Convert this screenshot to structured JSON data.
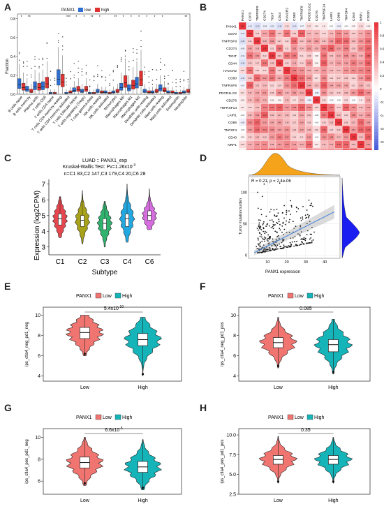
{
  "panels": {
    "A": {
      "label": "A",
      "legend_title": "PANX1",
      "legend_items": [
        {
          "name": "low",
          "color": "#2f6fd1"
        },
        {
          "name": "high",
          "color": "#e03131"
        }
      ],
      "ylabel": "Fraction",
      "yticks": [
        "0.0",
        "0.2",
        "0.4",
        "0.6",
        "0.8"
      ],
      "significance": [
        "*",
        "**",
        "",
        "",
        "",
        "",
        "***",
        "*",
        "*",
        "**",
        "*",
        "",
        "**",
        "*",
        "*",
        "*",
        "*",
        "*",
        "*",
        "",
        "",
        "**"
      ],
      "categories": [
        "B cells naive",
        "B cells memory",
        "Plasma cells",
        "T cells CD8",
        "T cells CD4 naive",
        "T cells CD4 memory resting",
        "T cells CD4 memory activated",
        "T cells follicular helper",
        "T cells regulatory (Tregs)",
        "T cells gamma delta",
        "NK cells resting",
        "NK cells activated",
        "Monocytes",
        "Macrophages M0",
        "Macrophages M1",
        "Macrophages M2",
        "Dendritic cells resting",
        "Dendritic cells activated",
        "Mast cells resting",
        "Mast cells activated",
        "Eosinophils",
        "Neutrophils"
      ],
      "low_medians": [
        0.1,
        0.05,
        0.08,
        0.08,
        0.01,
        0.16,
        0.01,
        0.04,
        0.03,
        0.01,
        0.03,
        0.02,
        0.02,
        0.07,
        0.06,
        0.11,
        0.03,
        0.02,
        0.06,
        0.02,
        0.01,
        0.02
      ],
      "high_medians": [
        0.07,
        0.03,
        0.07,
        0.11,
        0.01,
        0.13,
        0.02,
        0.05,
        0.05,
        0.01,
        0.02,
        0.01,
        0.03,
        0.12,
        0.09,
        0.15,
        0.02,
        0.03,
        0.04,
        0.02,
        0.01,
        0.03
      ]
    },
    "B": {
      "label": "B",
      "genes": [
        "PANX1",
        "CD70",
        "TNFRSF9",
        "CD274",
        "TIGIT",
        "CD44",
        "HAVCR2",
        "CD80",
        "TNFRSF8",
        "PDCD1LG2",
        "CD276",
        "TNFRSF14",
        "LAIR1",
        "CD86",
        "TNFSF4",
        "CD40",
        "NRP1",
        "CD200"
      ],
      "scale_ticks": [
        "1",
        "0.8",
        "0.6",
        "0.4",
        "0.2",
        "0",
        "-0.2",
        "-0.4",
        "-0.6",
        "-0.8",
        "-1"
      ],
      "colors": {
        "pos": "#e8343a",
        "neg": "#3b4fd6",
        "mid": "#ffffff"
      }
    },
    "C": {
      "label": "C",
      "title1": "LUAD :: PANX1_exp",
      "title2": "Kruskal-Wallis Test: Pv=1.26x10",
      "title2_sup": "-3",
      "title3": "n=C1 83,C2 147,C3 179,C4 20,C6 28",
      "ylabel": "Expression (log2CPM)",
      "xlabel": "Subtype",
      "yticks": [
        "3",
        "4",
        "5",
        "6",
        "7"
      ],
      "ylim": [
        2.5,
        7.3
      ],
      "groups": [
        {
          "name": "C1",
          "median": 4.8,
          "q1": 4.4,
          "q3": 5.1,
          "min": 3.6,
          "max": 6.2,
          "color": "#e6474e"
        },
        {
          "name": "C2",
          "median": 4.7,
          "q1": 4.3,
          "q3": 5.0,
          "min": 3.2,
          "max": 6.6,
          "color": "#a8a11a"
        },
        {
          "name": "C3",
          "median": 4.5,
          "q1": 4.1,
          "q3": 4.8,
          "min": 3.0,
          "max": 5.9,
          "color": "#2fb36e"
        },
        {
          "name": "C4",
          "median": 4.8,
          "q1": 4.3,
          "q3": 5.1,
          "min": 3.3,
          "max": 7.0,
          "color": "#22a8e0"
        },
        {
          "name": "C6",
          "median": 5.0,
          "q1": 4.7,
          "q3": 5.3,
          "min": 4.1,
          "max": 6.7,
          "color": "#d66ee0"
        }
      ]
    },
    "D": {
      "label": "D",
      "annotation": "R = 0.21, p = 2.4e-06",
      "xlabel": "PANX1 expression",
      "ylabel": "Tumor mutation burden",
      "xticks": [
        "10",
        "20",
        "30",
        "40"
      ],
      "yticks": [
        "0",
        "50",
        "100"
      ]
    },
    "E": {
      "label": "E",
      "legend_title": "PANX1",
      "legend_low": "Low",
      "legend_high": "High",
      "pvalue": "5.4x10",
      "pvalue_sup": "-10",
      "ylabel": "ips_ctla4_neg_pd1_neg",
      "yticks": [
        "4",
        "6",
        "8",
        "10"
      ],
      "ylim": [
        3.5,
        10.8
      ],
      "groups": [
        {
          "name": "Low",
          "median": 8.3,
          "q1": 7.7,
          "q3": 8.8,
          "min": 6.0,
          "max": 10.0
        },
        {
          "name": "High",
          "median": 7.6,
          "q1": 7.0,
          "q3": 8.2,
          "min": 4.0,
          "max": 9.8
        }
      ]
    },
    "F": {
      "label": "F",
      "legend_title": "PANX1",
      "legend_low": "Low",
      "legend_high": "High",
      "pvalue": "0.085",
      "pvalue_sup": "",
      "ylabel": "ips_ctla4_neg_pd1_pos",
      "yticks": [
        "4",
        "6",
        "8",
        "10"
      ],
      "ylim": [
        3.5,
        10.8
      ],
      "groups": [
        {
          "name": "Low",
          "median": 7.3,
          "q1": 6.8,
          "q3": 7.8,
          "min": 4.8,
          "max": 9.8
        },
        {
          "name": "High",
          "median": 7.1,
          "q1": 6.4,
          "q3": 7.6,
          "min": 4.2,
          "max": 9.6
        }
      ]
    },
    "G": {
      "label": "G",
      "legend_title": "PANX1",
      "legend_low": "Low",
      "legend_high": "High",
      "pvalue": "6.6x10",
      "pvalue_sup": "-5",
      "ylabel": "ips_ctla4_pos_pd1_neg",
      "yticks": [
        "6",
        "8",
        "10"
      ],
      "ylim": [
        4.8,
        10.8
      ],
      "groups": [
        {
          "name": "Low",
          "median": 7.7,
          "q1": 7.2,
          "q3": 8.2,
          "min": 5.6,
          "max": 10.0
        },
        {
          "name": "High",
          "median": 7.3,
          "q1": 6.8,
          "q3": 7.8,
          "min": 5.2,
          "max": 9.8
        }
      ]
    },
    "H": {
      "label": "H",
      "legend_title": "PANX1",
      "legend_low": "Low",
      "legend_high": "High",
      "pvalue": "0.35",
      "pvalue_sup": "",
      "ylabel": "ips_ctla4_pos_pd1_pos",
      "yticks": [
        "2.5",
        "5.0",
        "7.5",
        "10.0"
      ],
      "ylim": [
        2.5,
        10.8
      ],
      "groups": [
        {
          "name": "Low",
          "median": 6.9,
          "q1": 6.3,
          "q3": 7.4,
          "min": 3.9,
          "max": 9.8
        },
        {
          "name": "High",
          "median": 6.9,
          "q1": 6.3,
          "q3": 7.4,
          "min": 3.9,
          "max": 9.7
        }
      ]
    }
  },
  "colors": {
    "low": "#f07470",
    "high": "#14b4b8",
    "d_density_top": "#f5a31a",
    "d_density_right": "#1a1ef0",
    "d_line": "#3d7fd9"
  },
  "chart_data": [
    {
      "type": "box",
      "panel": "A",
      "ylabel": "Fraction",
      "ylim": [
        0,
        0.8
      ],
      "categories": [
        "B cells naive",
        "B cells memory",
        "Plasma cells",
        "T cells CD8",
        "T cells CD4 naive",
        "T cells CD4 memory resting",
        "T cells CD4 memory activated",
        "T cells follicular helper",
        "T cells regulatory (Tregs)",
        "T cells gamma delta",
        "NK cells resting",
        "NK cells activated",
        "Monocytes",
        "Macrophages M0",
        "Macrophages M1",
        "Macrophages M2",
        "Dendritic cells resting",
        "Dendritic cells activated",
        "Mast cells resting",
        "Mast cells activated",
        "Eosinophils",
        "Neutrophils"
      ],
      "series": [
        {
          "name": "low",
          "values": [
            0.1,
            0.05,
            0.08,
            0.08,
            0.01,
            0.16,
            0.01,
            0.04,
            0.03,
            0.01,
            0.03,
            0.02,
            0.02,
            0.07,
            0.06,
            0.11,
            0.03,
            0.02,
            0.06,
            0.02,
            0.01,
            0.02
          ]
        },
        {
          "name": "high",
          "values": [
            0.07,
            0.03,
            0.07,
            0.11,
            0.01,
            0.13,
            0.02,
            0.05,
            0.05,
            0.01,
            0.02,
            0.01,
            0.03,
            0.12,
            0.09,
            0.15,
            0.02,
            0.03,
            0.04,
            0.02,
            0.01,
            0.03
          ]
        }
      ]
    },
    {
      "type": "heatmap",
      "panel": "B",
      "range": [
        -1,
        1
      ]
    },
    {
      "type": "violin",
      "panel": "C",
      "ylabel": "Expression (log2CPM)",
      "xlabel": "Subtype",
      "categories": [
        "C1",
        "C2",
        "C3",
        "C4",
        "C6"
      ],
      "medians": [
        4.8,
        4.7,
        4.5,
        4.8,
        5.0
      ]
    },
    {
      "type": "scatter",
      "panel": "D",
      "xlabel": "PANX1 expression",
      "ylabel": "Tumor mutation burden",
      "r": 0.21,
      "p": "2.4e-06"
    },
    {
      "type": "violin",
      "panel": "E",
      "categories": [
        "Low",
        "High"
      ],
      "medians": [
        8.3,
        7.6
      ],
      "pvalue": "5.4x10^-10"
    },
    {
      "type": "violin",
      "panel": "F",
      "categories": [
        "Low",
        "High"
      ],
      "medians": [
        7.3,
        7.1
      ],
      "pvalue": "0.085"
    },
    {
      "type": "violin",
      "panel": "G",
      "categories": [
        "Low",
        "High"
      ],
      "medians": [
        7.7,
        7.3
      ],
      "pvalue": "6.6x10^-5"
    },
    {
      "type": "violin",
      "panel": "H",
      "categories": [
        "Low",
        "High"
      ],
      "medians": [
        6.9,
        6.9
      ],
      "pvalue": "0.35"
    }
  ]
}
